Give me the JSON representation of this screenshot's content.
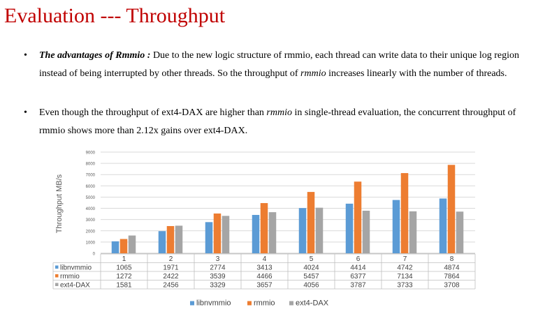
{
  "slide": {
    "title": "Evaluation  --- Throughput",
    "bullets": [
      {
        "parts": [
          {
            "text": "The advantages of Rmmio :",
            "style": "bold-italic"
          },
          {
            "text": " Due to the new logic structure of rmmio, each thread can write data to their unique  log region instead of being interrupted by other threads. So the throughput  of ",
            "style": "normal"
          },
          {
            "text": "rmmio",
            "style": "italic"
          },
          {
            "text": " increases linearly with the number of threads.",
            "style": "normal"
          }
        ]
      },
      {
        "parts": [
          {
            "text": "Even though the throughput  of ext4-DAX are higher than ",
            "style": "normal"
          },
          {
            "text": "rmmio",
            "style": "italic"
          },
          {
            "text": " in single-thread evaluation,  the concurrent throughput of rmmio  shows more than 2.12x  gains over ext4-DAX.",
            "style": "normal"
          }
        ]
      }
    ]
  },
  "chart_data": {
    "type": "bar",
    "title": "",
    "ylabel": "Throughput   MB/s",
    "xlabel": "",
    "ylim": [
      0,
      9000
    ],
    "yticks": [
      0,
      1000,
      2000,
      3000,
      4000,
      5000,
      6000,
      7000,
      8000,
      9000
    ],
    "grid": true,
    "legend": "bottom",
    "categories": [
      "1",
      "2",
      "3",
      "4",
      "5",
      "6",
      "7",
      "8"
    ],
    "series": [
      {
        "name": "libnvmmio",
        "color": "#5b9bd5",
        "values": [
          1065,
          1971,
          2774,
          3413,
          4024,
          4414,
          4742,
          4874
        ]
      },
      {
        "name": "rmmio",
        "color": "#ed7d31",
        "values": [
          1272,
          2422,
          3539,
          4466,
          5457,
          6377,
          7134,
          7864
        ]
      },
      {
        "name": "ext4-DAX",
        "color": "#a5a5a5",
        "values": [
          1581,
          2456,
          3329,
          3657,
          4056,
          3787,
          3733,
          3708
        ]
      }
    ],
    "data_table": true
  }
}
